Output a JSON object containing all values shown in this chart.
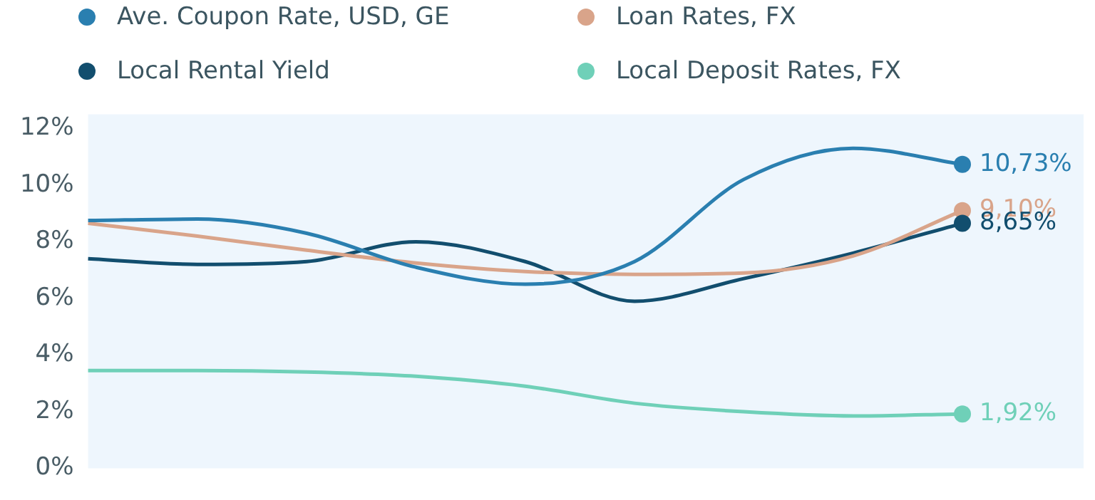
{
  "chart_data": {
    "type": "line",
    "categories": [
      null,
      null,
      null,
      null,
      null,
      null,
      null,
      null,
      null
    ],
    "series": [
      {
        "name": "Ave. Coupon Rate, USD, GE",
        "color": "#2a7fb0",
        "values": [
          8.75,
          8.8,
          8.3,
          7.1,
          6.5,
          7.3,
          10.2,
          11.3,
          10.73
        ],
        "value_labels": [
          null,
          null,
          null,
          null,
          null,
          null,
          null,
          null,
          "10,73%"
        ]
      },
      {
        "name": "Loan Rates, FX",
        "color": "#d9a48a",
        "values": [
          8.65,
          8.2,
          7.7,
          7.25,
          6.95,
          6.85,
          6.9,
          7.5,
          9.1
        ],
        "value_labels": [
          null,
          null,
          null,
          null,
          null,
          null,
          null,
          null,
          "9,10%"
        ]
      },
      {
        "name": "Local Rental Yield",
        "color": "#124e6e",
        "values": [
          7.4,
          7.2,
          7.3,
          8.0,
          7.3,
          5.9,
          6.7,
          7.6,
          8.65
        ],
        "value_labels": [
          null,
          null,
          null,
          null,
          null,
          null,
          null,
          null,
          "8,65%"
        ]
      },
      {
        "name": "Local Deposit Rates, FX",
        "color": "#6fd0b8",
        "values": [
          3.45,
          3.45,
          3.4,
          3.25,
          2.9,
          2.3,
          2.0,
          1.85,
          1.92
        ],
        "value_labels": [
          null,
          null,
          null,
          null,
          null,
          null,
          null,
          null,
          "1,92%"
        ]
      }
    ],
    "ylim": [
      0,
      12.5
    ],
    "yticks": [
      {
        "value": 0,
        "label": "0%"
      },
      {
        "value": 2,
        "label": "2%"
      },
      {
        "value": 4,
        "label": "4%"
      },
      {
        "value": 6,
        "label": "6%"
      },
      {
        "value": 8,
        "label": "8%"
      },
      {
        "value": 10,
        "label": "10%"
      },
      {
        "value": 12,
        "label": "12%"
      }
    ],
    "tick_labels": "y",
    "grid": false,
    "legend": "top"
  }
}
